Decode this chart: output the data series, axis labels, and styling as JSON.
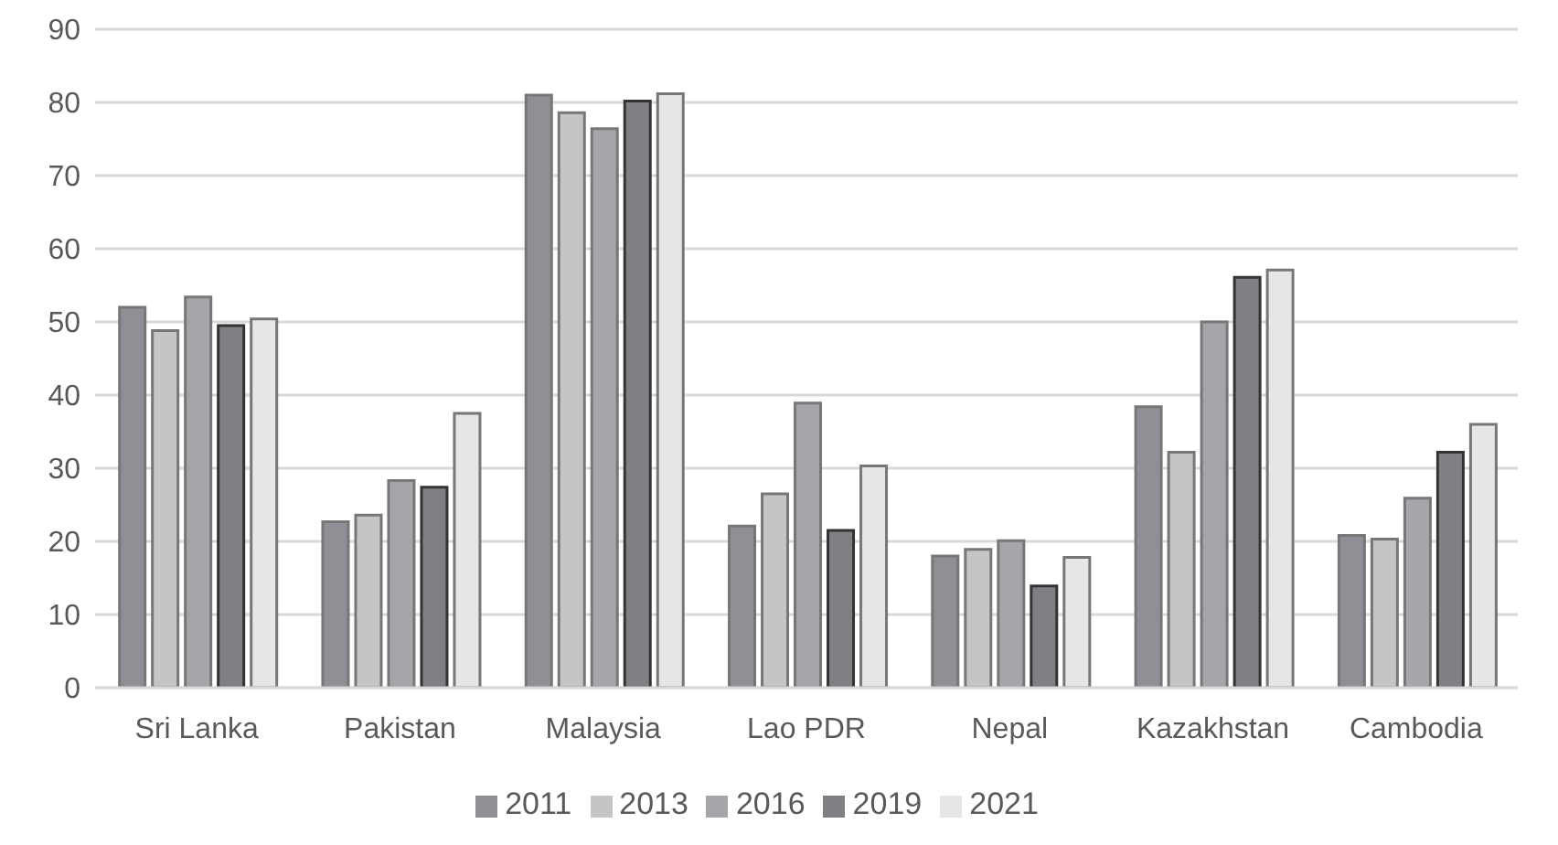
{
  "chart_data": {
    "type": "bar",
    "categories": [
      "Sri Lanka",
      "Pakistan",
      "Malaysia",
      "Lao PDR",
      "Nepal",
      "Kazakhstan",
      "Cambodia"
    ],
    "series": [
      {
        "name": "2011",
        "color": "#8f9095",
        "values": [
          52,
          22.7,
          81,
          22.1,
          18,
          38.4,
          20.8
        ]
      },
      {
        "name": "2013",
        "color": "#c4c5c7",
        "values": [
          48.8,
          23.6,
          78.6,
          26.5,
          18.9,
          32.2,
          20.3
        ]
      },
      {
        "name": "2016",
        "color": "#a5a6aa",
        "values": [
          53.4,
          28.3,
          76.4,
          38.9,
          20.1,
          50,
          25.9
        ]
      },
      {
        "name": "2019",
        "color": "#7f8084",
        "values": [
          49.5,
          27.4,
          80.2,
          21.5,
          13.9,
          56.1,
          32.2
        ]
      },
      {
        "name": "2021",
        "color": "#e6e6e8",
        "values": [
          50.4,
          37.5,
          81.2,
          30.3,
          17.8,
          57.1,
          36
        ]
      }
    ],
    "ylim": [
      0,
      90
    ],
    "yticks": [
      0,
      10,
      20,
      30,
      40,
      50,
      60,
      70,
      80,
      90
    ],
    "grid": "y",
    "legend": "bottom"
  }
}
